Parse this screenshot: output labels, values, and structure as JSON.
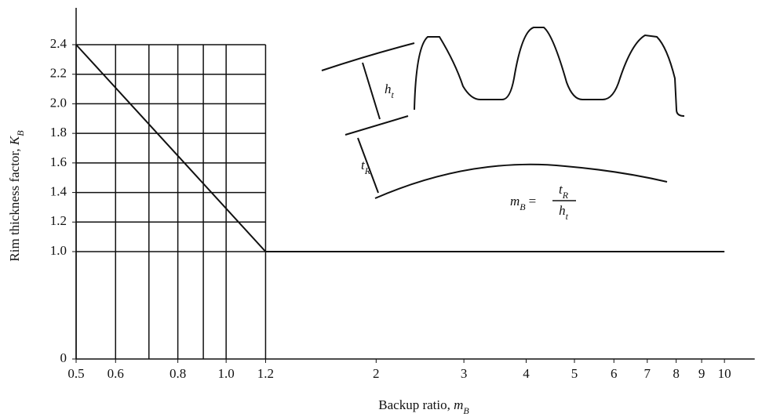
{
  "chart_data": {
    "type": "line",
    "x_label": {
      "text": "Backup ratio, ",
      "symbol": "m",
      "sub": "B"
    },
    "y_label": {
      "text": "Rim thickness factor, ",
      "symbol": "K",
      "sub": "B"
    },
    "x_scale": "log",
    "xlim": [
      0.5,
      11.5
    ],
    "xticks": [
      0.5,
      0.6,
      0.8,
      {
        "value": 1,
        "label": "1.0"
      },
      1.2,
      2,
      3,
      4,
      5,
      6,
      7,
      8,
      9,
      10
    ],
    "ylim": [
      0,
      2.4
    ],
    "yticks": [
      0,
      {
        "value": 1,
        "label": "1.0"
      },
      1.2,
      1.4,
      1.6,
      1.8,
      {
        "value": 2,
        "label": "2.0"
      },
      2.2,
      2.4
    ],
    "grid": true,
    "xgrid": [
      0.5,
      0.6,
      0.7,
      0.8,
      0.9,
      1,
      1.2
    ],
    "ygrid": [
      1,
      1.2,
      1.4,
      1.6,
      1.8,
      2,
      2.2,
      2.4
    ],
    "x": [
      0.5,
      1.2,
      10
    ],
    "series": [
      {
        "color": "#111111",
        "values": [
          2.4,
          1,
          1
        ]
      }
    ],
    "annotations": [
      {
        "text": "h",
        "sub": "t"
      },
      {
        "text": "t",
        "sub": "R"
      },
      {
        "text": "m",
        "sub": "B",
        "eq": "=",
        "num": "t",
        "num_sub": "R",
        "den": "h",
        "den_sub": "t"
      }
    ]
  }
}
